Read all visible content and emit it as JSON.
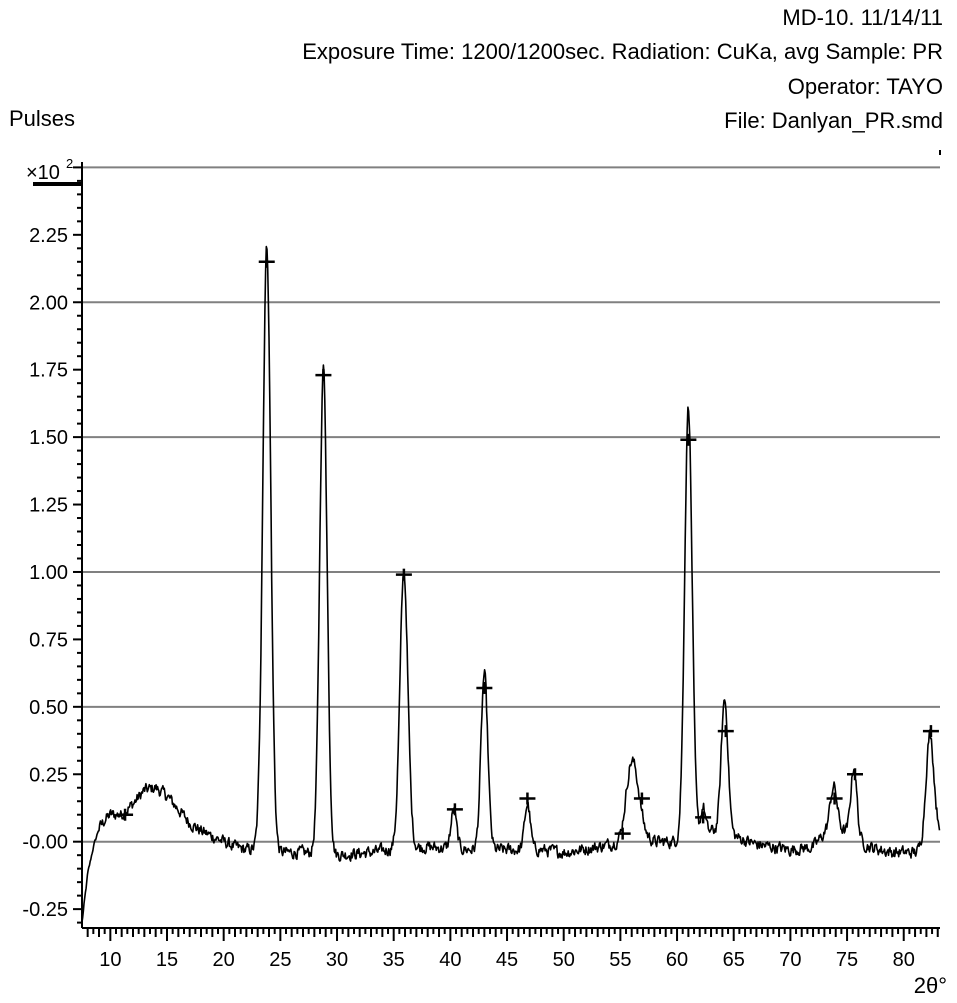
{
  "header": {
    "line1": "MD-10. 11/14/11",
    "line2": "Exposure Time: 1200/1200sec. Radiation: CuKa, avg  Sample: PR",
    "line3": "Operator: TAYO",
    "line4": "File: Danlyan_PR.smd"
  },
  "colors": {
    "trace": "#000000",
    "grid": "#808080",
    "axis": "#000000"
  },
  "chart_data": {
    "type": "line",
    "title": "",
    "xlabel": "2θ°",
    "ylabel": "Pulses",
    "y_multiplier": "×10",
    "y_multiplier_exponent": "2",
    "xlim": [
      7.5,
      83.2
    ],
    "ylim": [
      -0.32,
      2.52
    ],
    "grid": "horizontal",
    "x_ticks": [
      10,
      15,
      20,
      25,
      30,
      35,
      40,
      45,
      50,
      55,
      60,
      65,
      70,
      75,
      80
    ],
    "y_ticks": [
      -0.25,
      0.0,
      0.25,
      0.5,
      0.75,
      1.0,
      1.25,
      1.5,
      1.75,
      2.0,
      2.25
    ],
    "y_tick_labels": [
      "-0.25",
      "-0.00",
      "0.25",
      "0.50",
      "0.75",
      "1.00",
      "1.25",
      "1.50",
      "1.75",
      "2.00",
      "2.25"
    ],
    "gridlines_y": [
      0.0,
      0.5,
      1.0,
      1.5,
      2.0,
      2.5
    ],
    "baseline": [
      [
        7.5,
        -0.3
      ],
      [
        8.0,
        -0.12
      ],
      [
        8.5,
        -0.02
      ],
      [
        9.0,
        0.05
      ],
      [
        9.5,
        0.08
      ],
      [
        10.0,
        0.1
      ],
      [
        11.0,
        0.1
      ],
      [
        12.0,
        0.14
      ],
      [
        13.0,
        0.19
      ],
      [
        14.0,
        0.2
      ],
      [
        15.0,
        0.17
      ],
      [
        16.0,
        0.12
      ],
      [
        17.0,
        0.07
      ],
      [
        18.0,
        0.04
      ],
      [
        19.0,
        0.02
      ],
      [
        20.0,
        0.0
      ],
      [
        21.0,
        -0.02
      ],
      [
        22.0,
        -0.03
      ],
      [
        23.0,
        -0.03
      ],
      [
        25.0,
        -0.04
      ],
      [
        27.0,
        -0.04
      ],
      [
        30.0,
        -0.05
      ],
      [
        33.0,
        -0.04
      ],
      [
        36.0,
        -0.02
      ],
      [
        38.0,
        -0.02
      ],
      [
        42.0,
        -0.03
      ],
      [
        45.0,
        -0.03
      ],
      [
        48.0,
        -0.03
      ],
      [
        50.0,
        -0.04
      ],
      [
        53.0,
        -0.02
      ],
      [
        55.0,
        0.0
      ],
      [
        56.0,
        0.03
      ],
      [
        57.0,
        0.03
      ],
      [
        58.0,
        0.0
      ],
      [
        60.0,
        0.0
      ],
      [
        63.0,
        0.04
      ],
      [
        65.0,
        0.02
      ],
      [
        67.0,
        -0.01
      ],
      [
        70.0,
        -0.03
      ],
      [
        72.0,
        -0.02
      ],
      [
        73.0,
        0.03
      ],
      [
        74.0,
        0.06
      ],
      [
        75.0,
        0.03
      ],
      [
        77.0,
        -0.02
      ],
      [
        79.0,
        -0.04
      ],
      [
        81.0,
        -0.04
      ],
      [
        82.0,
        -0.02
      ],
      [
        83.2,
        0.05
      ]
    ],
    "peaks": [
      {
        "x": 23.8,
        "height": 2.24,
        "width": 0.35
      },
      {
        "x": 28.8,
        "height": 1.8,
        "width": 0.33
      },
      {
        "x": 35.9,
        "height": 1.02,
        "width": 0.35
      },
      {
        "x": 40.3,
        "height": 0.14,
        "width": 0.25
      },
      {
        "x": 43.0,
        "height": 0.65,
        "width": 0.3
      },
      {
        "x": 46.8,
        "height": 0.17,
        "width": 0.25
      },
      {
        "x": 55.9,
        "height": 0.23,
        "width": 0.45
      },
      {
        "x": 56.5,
        "height": 0.1,
        "width": 0.4
      },
      {
        "x": 61.0,
        "height": 1.6,
        "width": 0.33
      },
      {
        "x": 62.3,
        "height": 0.1,
        "width": 0.2
      },
      {
        "x": 64.2,
        "height": 0.5,
        "width": 0.3
      },
      {
        "x": 73.8,
        "height": 0.15,
        "width": 0.3
      },
      {
        "x": 75.6,
        "height": 0.26,
        "width": 0.27
      },
      {
        "x": 82.3,
        "height": 0.4,
        "width": 0.35
      }
    ],
    "noise_amplitude": 0.035,
    "peak_markers": [
      [
        11.3,
        0.1
      ],
      [
        23.8,
        2.15
      ],
      [
        28.8,
        1.73
      ],
      [
        35.9,
        0.99
      ],
      [
        40.4,
        0.12
      ],
      [
        43.0,
        0.57
      ],
      [
        46.8,
        0.16
      ],
      [
        55.2,
        0.03
      ],
      [
        56.9,
        0.16
      ],
      [
        61.0,
        1.49
      ],
      [
        62.3,
        0.09
      ],
      [
        64.3,
        0.41
      ],
      [
        73.9,
        0.16
      ],
      [
        75.7,
        0.25
      ],
      [
        82.4,
        0.41
      ]
    ]
  }
}
